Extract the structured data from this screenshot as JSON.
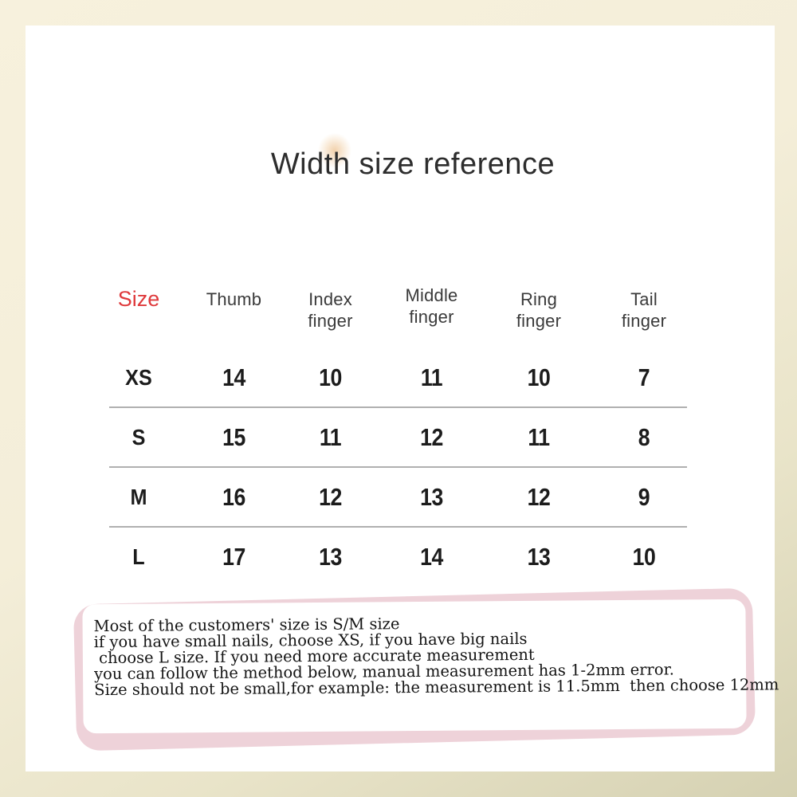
{
  "title": "Width size reference",
  "chart_data": {
    "type": "table",
    "title": "Width size reference",
    "columns": [
      "Size",
      "Thumb",
      "Index finger",
      "Middle finger",
      "Ring finger",
      "Tail finger"
    ],
    "rows": [
      [
        "XS",
        "14",
        "10",
        "11",
        "10",
        "7"
      ],
      [
        "S",
        "15",
        "11",
        "12",
        "11",
        "8"
      ],
      [
        "M",
        "16",
        "12",
        "13",
        "12",
        "9"
      ],
      [
        "L",
        "17",
        "13",
        "14",
        "13",
        "10"
      ]
    ]
  },
  "table_display": {
    "size_header": "Size",
    "col_headers": [
      "Thumb",
      "Index\nfinger",
      "Middle\nfinger",
      "Ring\nfinger",
      "Tail\nfinger"
    ]
  },
  "note": {
    "lines": [
      "Most of the customers' size is S/M size",
      "if you have small nails, choose XS, if you have big nails",
      " choose L size. If you need more accurate measurement",
      "you can follow the method below, manual measurement has 1-2mm error.",
      "Size should not be small,for example: the measurement is 11.5mm  then choose 12mm"
    ]
  },
  "colors": {
    "size_header_red": "#df3a3c",
    "frame_cream": "#f6f0db",
    "frame_khaki": "#d5d1b2",
    "note_pink": "#eed2d9",
    "divider_gray": "#b0b0b0",
    "text_dark": "#1c1c1c"
  }
}
